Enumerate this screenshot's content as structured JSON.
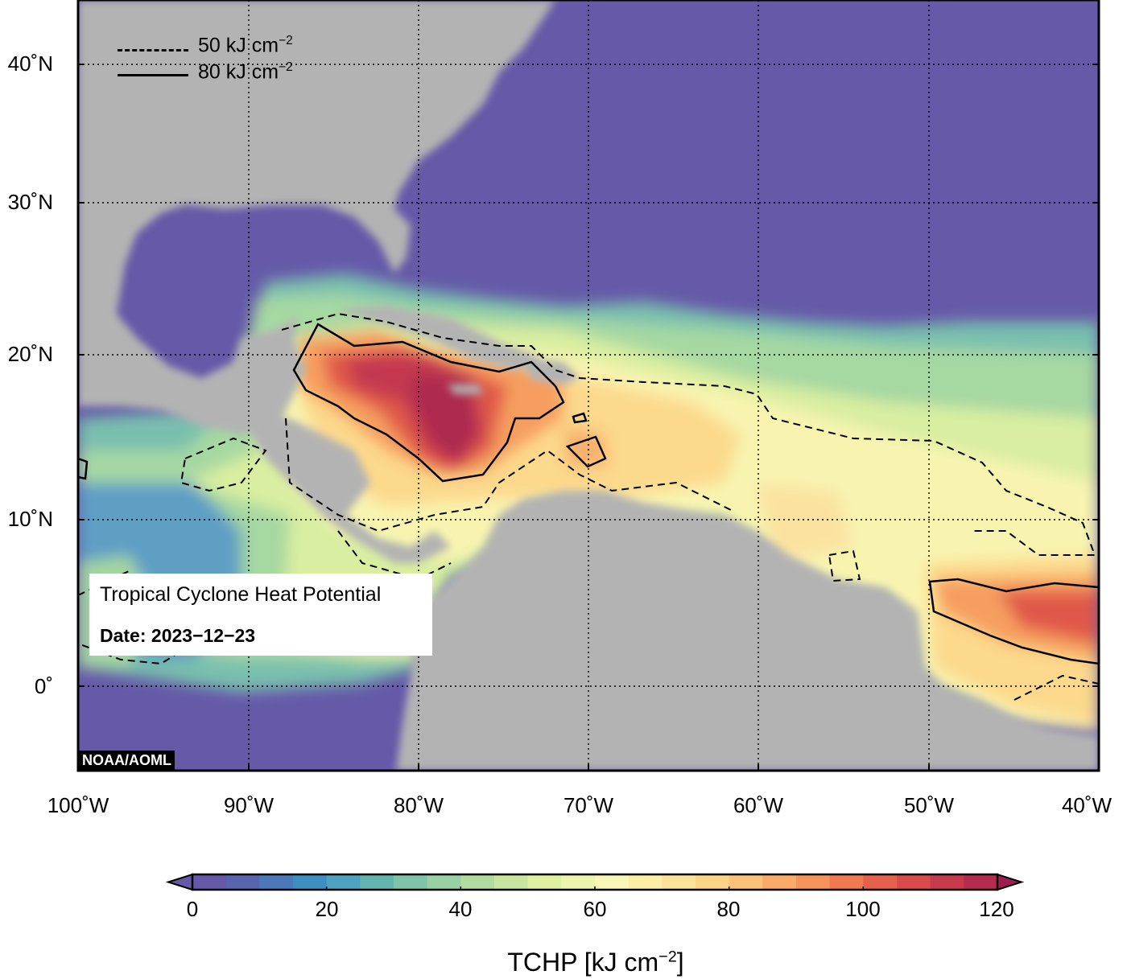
{
  "map": {
    "title": "Tropical Cyclone Heat Potential",
    "date": "Date: 2023−12−23",
    "credit": "NOAA/AOML",
    "legend": {
      "dashed": {
        "label": "50 kJ cm",
        "exp": "−2"
      },
      "solid": {
        "label": "80 kJ cm",
        "exp": "−2"
      }
    },
    "lat_labels": [
      "40˚N",
      "30˚N",
      "20˚N",
      "10˚N",
      "0˚"
    ],
    "lon_labels": [
      "100˚W",
      "90˚W",
      "80˚W",
      "70˚W",
      "60˚W",
      "50˚W",
      "40˚W"
    ],
    "extent": {
      "lon": [
        -100,
        -40
      ],
      "lat": [
        -5,
        44
      ]
    }
  },
  "colorbar": {
    "title": "TCHP [kJ cm",
    "title_exp": "−2",
    "title_end": "]",
    "ticks": [
      "0",
      "20",
      "40",
      "60",
      "80",
      "100",
      "120"
    ],
    "range": [
      0,
      120
    ],
    "step": 5,
    "colors": [
      "#6559a8",
      "#5864ad",
      "#4b79b7",
      "#3e8fc1",
      "#4ca2c0",
      "#64b5b0",
      "#7fc4a8",
      "#98d1a4",
      "#b1dca0",
      "#c9e69e",
      "#dff0a0",
      "#edf5ad",
      "#f8f7b5",
      "#fbefa5",
      "#fce298",
      "#fcd486",
      "#fbc278",
      "#f9ab67",
      "#f5935a",
      "#ef7a4f",
      "#e5614b",
      "#d84c4b",
      "#c83b4f",
      "#b42c50"
    ],
    "under": "#6559a8",
    "over": "#a01e4f"
  },
  "colors": {
    "land": "#b3b3b3",
    "ocean_low": "#6559a8",
    "frame": "#000000"
  }
}
